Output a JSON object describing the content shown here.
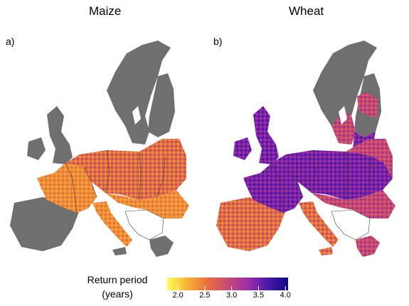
{
  "panels": [
    {
      "letter": "a)",
      "title": "Maize"
    },
    {
      "letter": "b)",
      "title": "Wheat"
    }
  ],
  "legend": {
    "title_line1": "Return period",
    "title_line2": "(years)",
    "ticks": [
      "2.0",
      "2.5",
      "3.0",
      "3.5",
      "4.0"
    ],
    "range": [
      1.8,
      4.05
    ],
    "colormap": [
      "#fcff5c",
      "#f9b233",
      "#ea6e3e",
      "#c74a78",
      "#9b2fa6",
      "#4b18a8",
      "#0d0887"
    ]
  },
  "colors": {
    "no_data_land": "#6f6f6f",
    "excluded_region": "#ffffff",
    "border": "#3a3a3a"
  }
}
